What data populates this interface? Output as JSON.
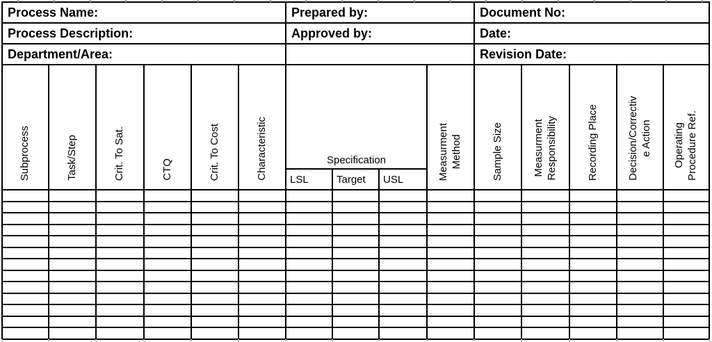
{
  "document": {
    "info_rows": [
      {
        "left": "Process Name:",
        "middle": "Prepared by:",
        "right": "Document No:"
      },
      {
        "left": "Process Description:",
        "middle": "Approved by:",
        "right": "Date:"
      },
      {
        "left": "Department/Area:",
        "middle": "",
        "right": "Revision Date:"
      }
    ]
  },
  "table": {
    "headers_left": [
      "Subprocess",
      "Task/Step",
      "Crit. To Sat.",
      "CTQ",
      "Crit. To Cost",
      "Characteristic"
    ],
    "specification": {
      "label": "Specification",
      "sub_columns": [
        "LSL",
        "Target",
        "USL"
      ]
    },
    "headers_right": [
      "Measurment\nMethod",
      "Sample Size",
      "Measurment\nResponsibility",
      "Recording Place",
      "Decision/Correctiv\ne Action",
      "Operating\nProcedure Ref."
    ],
    "body": {
      "rows": 13,
      "columns": 15
    }
  },
  "colors": {
    "border": "#000000",
    "background": "#ffffff",
    "gridline_tick_top": "#9a9a9a",
    "gridline_tick_bottom": "#bdbdbd"
  }
}
